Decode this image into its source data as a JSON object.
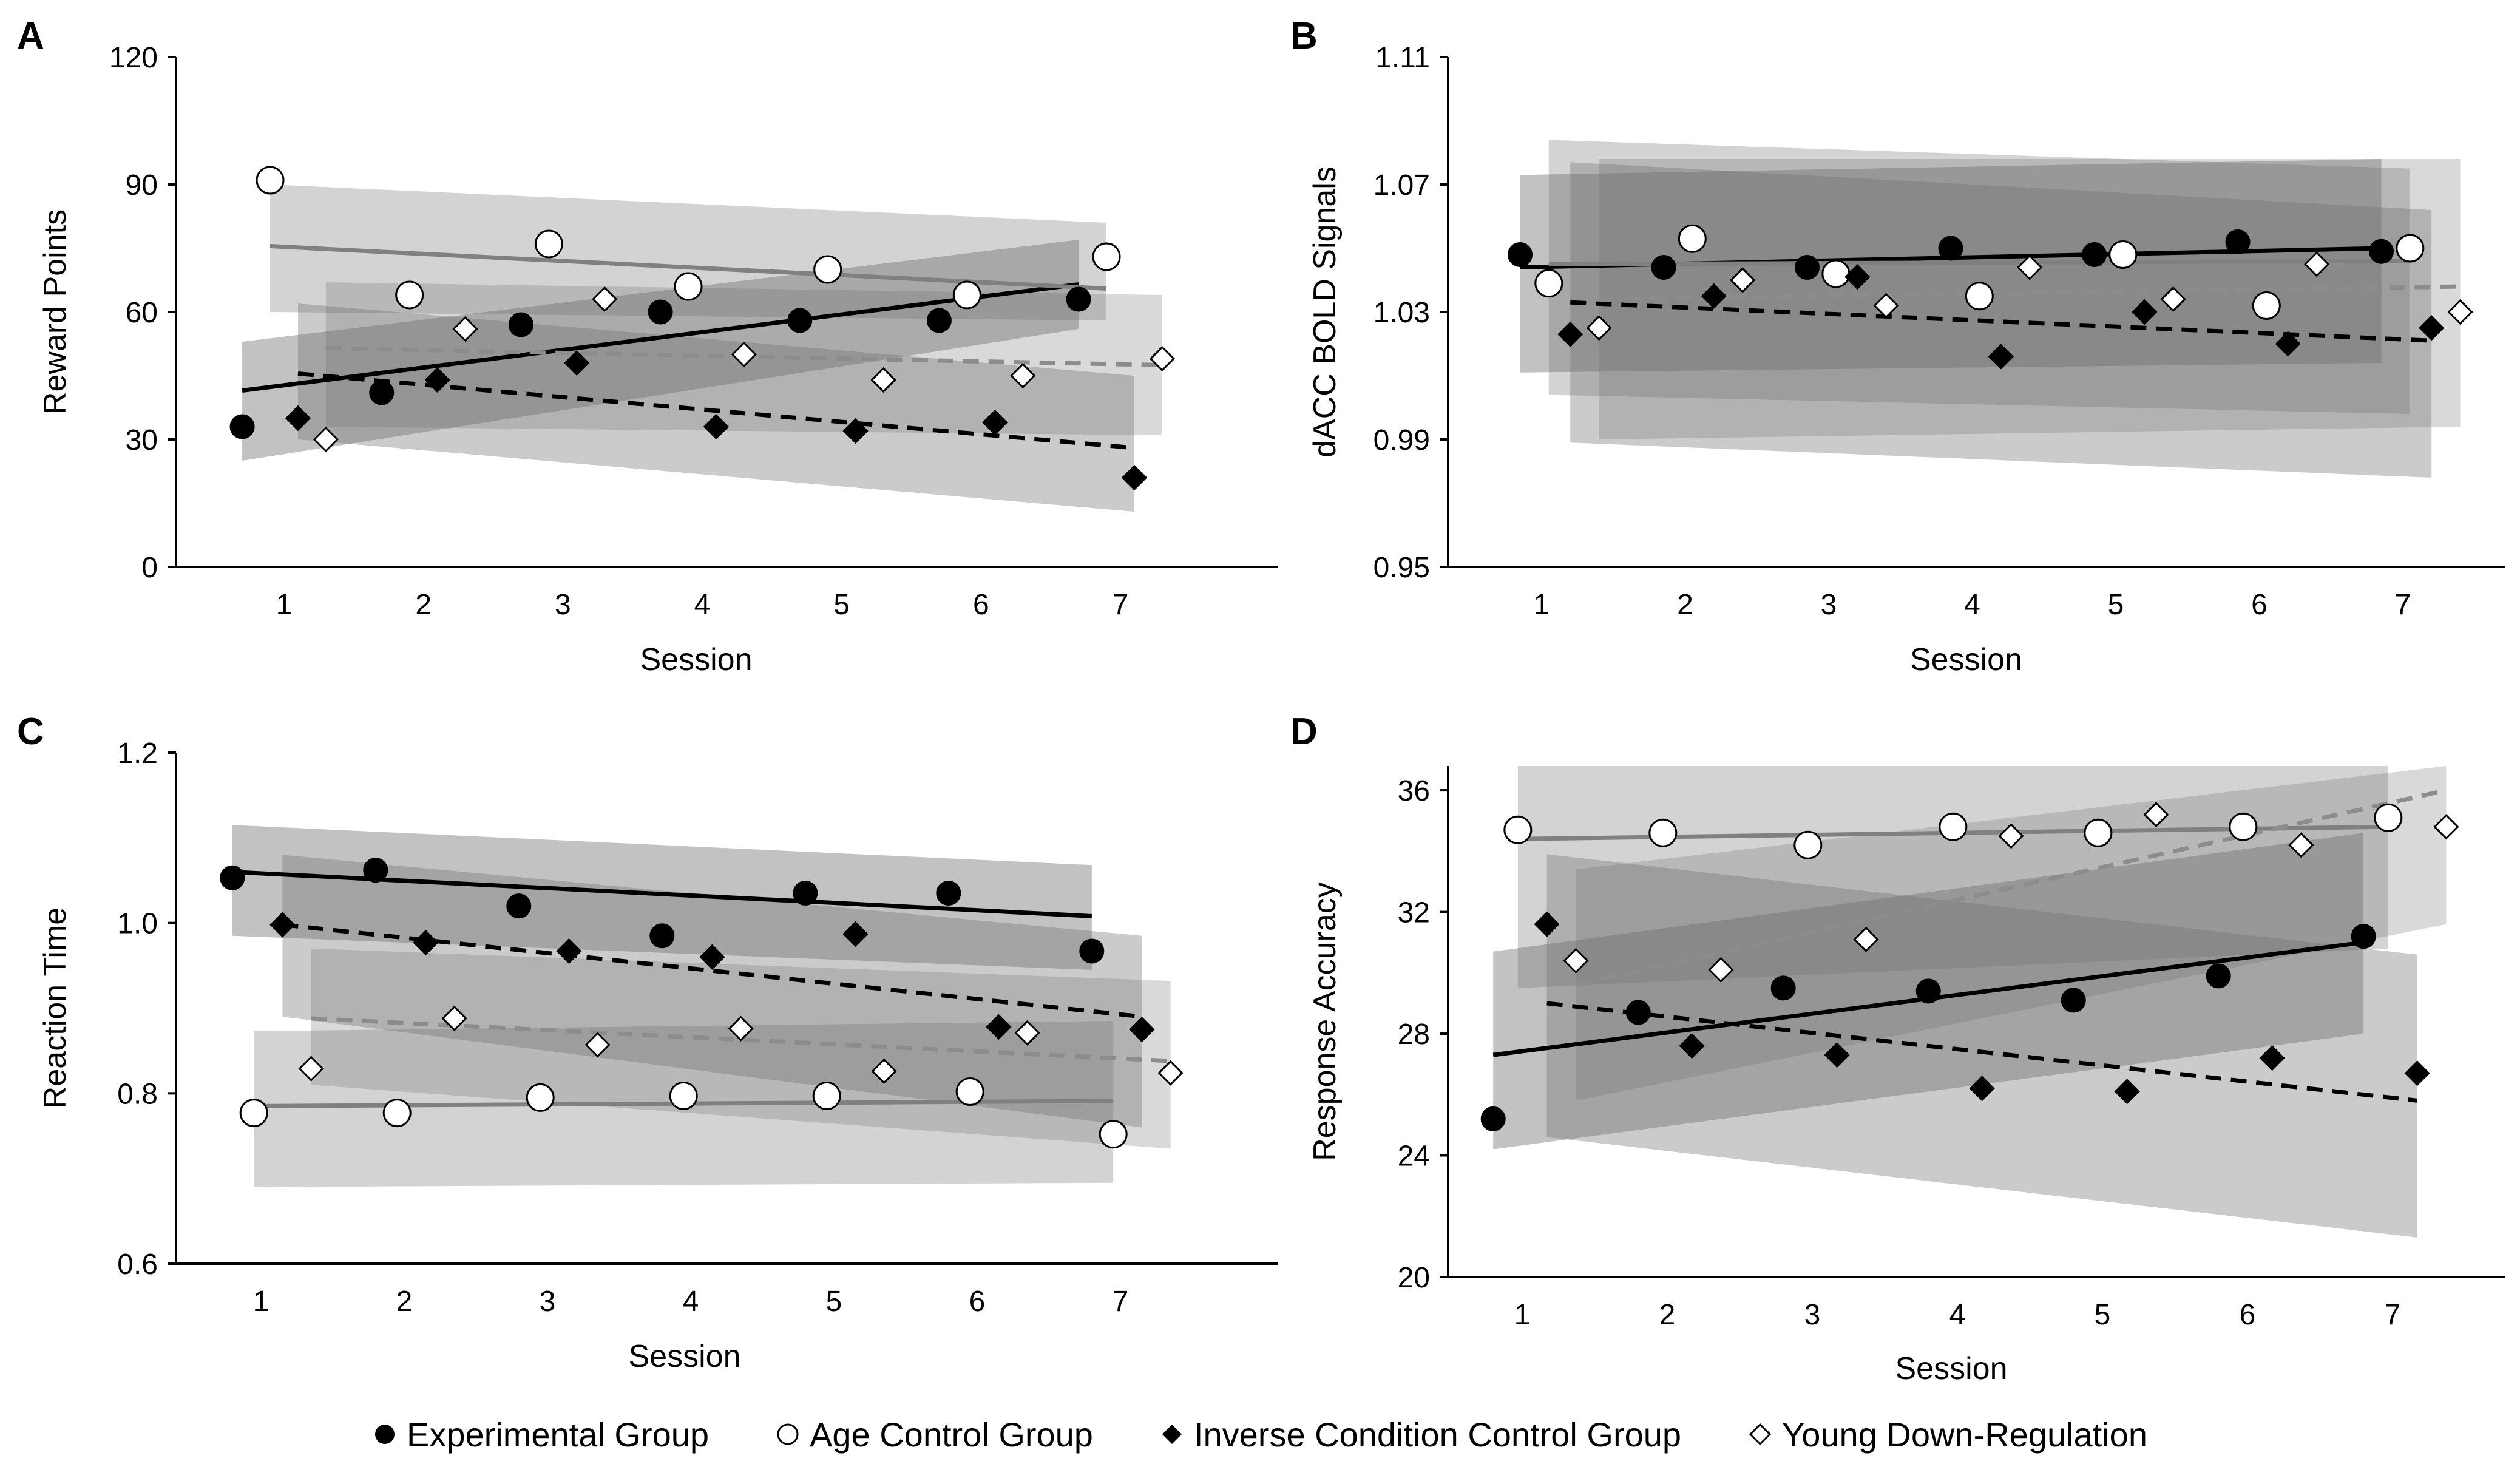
{
  "legend": [
    {
      "key": "exp",
      "label": "Experimental Group"
    },
    {
      "key": "age",
      "label": "Age Control Group"
    },
    {
      "key": "inv",
      "label": "Inverse Condition Control Group"
    },
    {
      "key": "young",
      "label": "Young Down-Regulation"
    }
  ],
  "colors": {
    "axis": "#000000",
    "exp_line": "#000000",
    "age_line": "#808080",
    "inv_line": "#000000",
    "young_line": "#8c8c8c",
    "marker_dark": "#000000",
    "marker_light": "#ffffff",
    "band": "#b4b4b4"
  },
  "chart_data": [
    {
      "panel": "A",
      "type": "scatter",
      "title": "",
      "xlabel": "Session",
      "ylabel": "Reward Points",
      "ylim": [
        0,
        120
      ],
      "yticks": [
        0,
        30,
        60,
        90,
        120
      ],
      "xticks": [
        1,
        2,
        3,
        4,
        5,
        6,
        7
      ],
      "series": [
        {
          "name": "Experimental Group",
          "key": "exp",
          "x": [
            0.7,
            1.7,
            2.7,
            3.7,
            4.7,
            5.7,
            6.7
          ],
          "values": [
            33,
            41,
            57,
            60,
            58,
            58,
            63
          ],
          "trend": [
            [
              0.7,
              41.5
            ],
            [
              6.7,
              66.5
            ]
          ],
          "band": [
            [
              0.7,
              25,
              53
            ],
            [
              6.7,
              56,
              77
            ]
          ]
        },
        {
          "name": "Age Control Group",
          "key": "age",
          "x": [
            0.9,
            1.9,
            2.9,
            3.9,
            4.9,
            5.9,
            6.9
          ],
          "values": [
            91,
            64,
            76,
            66,
            70,
            64,
            73
          ],
          "trend": [
            [
              0.9,
              75.5
            ],
            [
              6.9,
              65.5
            ]
          ],
          "band": [
            [
              0.9,
              60,
              90
            ],
            [
              6.9,
              58,
              81
            ]
          ]
        },
        {
          "name": "Inverse Condition Control Group",
          "key": "inv",
          "x": [
            1.1,
            2.1,
            3.1,
            4.1,
            5.1,
            6.1,
            7.1
          ],
          "values": [
            35,
            44,
            48,
            33,
            32,
            34,
            21
          ],
          "trend": [
            [
              1.1,
              45.5
            ],
            [
              7.1,
              28
            ]
          ],
          "band": [
            [
              1.1,
              30,
              62
            ],
            [
              7.1,
              13,
              45
            ]
          ]
        },
        {
          "name": "Young Down-Regulation",
          "key": "young",
          "x": [
            1.3,
            2.3,
            3.3,
            4.3,
            5.3,
            6.3,
            7.3
          ],
          "values": [
            30,
            56,
            63,
            50,
            44,
            45,
            49
          ],
          "trend": [
            [
              1.3,
              51.5
            ],
            [
              7.3,
              47.5
            ]
          ],
          "band": [
            [
              1.3,
              33,
              67
            ],
            [
              7.3,
              31,
              64
            ]
          ]
        }
      ]
    },
    {
      "panel": "B",
      "type": "scatter",
      "title": "",
      "xlabel": "Session",
      "ylabel": "dACC BOLD Signals",
      "ylim": [
        0.95,
        1.11
      ],
      "yticks": [
        0.95,
        0.99,
        1.03,
        1.07,
        1.11
      ],
      "xticks": [
        1,
        2,
        3,
        4,
        5,
        6,
        7
      ],
      "series": [
        {
          "name": "Experimental Group",
          "key": "exp",
          "x": [
            0.85,
            1.85,
            2.85,
            3.85,
            4.85,
            5.85,
            6.85
          ],
          "values": [
            1.048,
            1.044,
            1.044,
            1.05,
            1.048,
            1.052,
            1.049
          ],
          "trend": [
            [
              0.85,
              1.044
            ],
            [
              6.85,
              1.05
            ]
          ],
          "band": [
            [
              0.85,
              1.011,
              1.073
            ],
            [
              6.85,
              1.014,
              1.078
            ]
          ]
        },
        {
          "name": "Age Control Group",
          "key": "age",
          "x": [
            1.05,
            2.05,
            3.05,
            4.05,
            5.05,
            6.05,
            7.05
          ],
          "values": [
            1.039,
            1.053,
            1.042,
            1.035,
            1.048,
            1.032,
            1.05
          ],
          "trend": [
            [
              1.05,
              1.045
            ],
            [
              7.05,
              1.046
            ]
          ],
          "band": [
            [
              1.05,
              1.004,
              1.084
            ],
            [
              7.05,
              0.998,
              1.075
            ]
          ]
        },
        {
          "name": "Inverse Condition Control Group",
          "key": "inv",
          "x": [
            1.2,
            2.2,
            3.2,
            4.2,
            5.2,
            6.2,
            7.2
          ],
          "values": [
            1.023,
            1.035,
            1.041,
            1.016,
            1.03,
            1.02,
            1.025
          ],
          "trend": [
            [
              1.2,
              1.033
            ],
            [
              7.2,
              1.021
            ]
          ],
          "band": [
            [
              1.2,
              0.989,
              1.077
            ],
            [
              7.2,
              0.978,
              1.062
            ]
          ]
        },
        {
          "name": "Young Down-Regulation",
          "key": "young",
          "x": [
            1.4,
            2.4,
            3.4,
            4.4,
            5.4,
            6.4,
            7.4
          ],
          "values": [
            1.025,
            1.04,
            1.032,
            1.044,
            1.034,
            1.045,
            1.03
          ],
          "trend": [
            [
              1.4,
              1.034
            ],
            [
              7.4,
              1.038
            ]
          ],
          "band": [
            [
              1.4,
              0.99,
              1.078
            ],
            [
              7.4,
              0.994,
              1.078
            ]
          ]
        }
      ]
    },
    {
      "panel": "C",
      "type": "scatter",
      "title": "",
      "xlabel": "Session",
      "ylabel": "Reaction Time",
      "ylim": [
        0.6,
        1.2
      ],
      "yticks": [
        0.6,
        0.8,
        1.0,
        1.2
      ],
      "xticks": [
        1,
        2,
        3,
        4,
        5,
        6,
        7
      ],
      "series": [
        {
          "name": "Experimental Group",
          "key": "exp",
          "x": [
            0.8,
            1.8,
            2.8,
            3.8,
            4.8,
            5.8,
            6.8
          ],
          "values": [
            1.053,
            1.062,
            1.02,
            0.985,
            1.035,
            1.035,
            0.967
          ],
          "trend": [
            [
              0.8,
              1.06
            ],
            [
              6.8,
              1.008
            ]
          ],
          "band": [
            [
              0.8,
              0.985,
              1.115
            ],
            [
              6.8,
              0.945,
              1.068
            ]
          ]
        },
        {
          "name": "Age Control Group",
          "key": "age",
          "x": [
            0.95,
            1.95,
            2.95,
            3.95,
            4.95,
            5.95,
            6.95
          ],
          "values": [
            0.777,
            0.777,
            0.795,
            0.797,
            0.797,
            0.802,
            0.752
          ],
          "trend": [
            [
              0.95,
              0.785
            ],
            [
              6.95,
              0.791
            ]
          ],
          "band": [
            [
              0.95,
              0.69,
              0.873
            ],
            [
              6.95,
              0.695,
              0.885
            ]
          ]
        },
        {
          "name": "Inverse Condition Control Group",
          "key": "inv",
          "x": [
            1.15,
            2.15,
            3.15,
            4.15,
            5.15,
            6.15,
            7.15
          ],
          "values": [
            0.998,
            0.977,
            0.967,
            0.96,
            0.987,
            0.878,
            0.875
          ],
          "trend": [
            [
              1.15,
              0.998
            ],
            [
              7.15,
              0.89
            ]
          ],
          "band": [
            [
              1.15,
              0.89,
              1.08
            ],
            [
              7.15,
              0.76,
              0.985
            ]
          ]
        },
        {
          "name": "Young Down-Regulation",
          "key": "young",
          "x": [
            1.35,
            2.35,
            3.35,
            4.35,
            5.35,
            6.35,
            7.35
          ],
          "values": [
            0.829,
            0.888,
            0.857,
            0.876,
            0.826,
            0.871,
            0.824
          ],
          "trend": [
            [
              1.35,
              0.888
            ],
            [
              7.35,
              0.838
            ]
          ],
          "band": [
            [
              1.35,
              0.81,
              0.97
            ],
            [
              7.35,
              0.735,
              0.932
            ]
          ]
        }
      ]
    },
    {
      "panel": "D",
      "type": "scatter",
      "title": "",
      "xlabel": "Session",
      "ylabel": "Response Accuracy",
      "ylim": [
        20,
        36.8
      ],
      "yticks": [
        20,
        24,
        28,
        32,
        36
      ],
      "xticks": [
        1,
        2,
        3,
        4,
        5,
        6,
        7
      ],
      "series": [
        {
          "name": "Experimental Group",
          "key": "exp",
          "x": [
            0.8,
            1.8,
            2.8,
            3.8,
            4.8,
            5.8,
            6.8
          ],
          "values": [
            25.2,
            28.7,
            29.5,
            29.4,
            29.1,
            29.9,
            31.2
          ],
          "trend": [
            [
              0.8,
              27.3
            ],
            [
              6.8,
              31.0
            ]
          ],
          "band": [
            [
              0.8,
              24.2,
              30.7
            ],
            [
              6.8,
              28.0,
              34.6
            ]
          ]
        },
        {
          "name": "Age Control Group",
          "key": "age",
          "x": [
            0.97,
            1.97,
            2.97,
            3.97,
            4.97,
            5.97,
            6.97
          ],
          "values": [
            34.7,
            34.6,
            34.2,
            34.8,
            34.6,
            34.8,
            35.1
          ],
          "trend": [
            [
              0.97,
              34.4
            ],
            [
              6.97,
              34.8
            ]
          ],
          "band": [
            [
              0.97,
              29.5,
              36.8
            ],
            [
              6.97,
              30.8,
              36.8
            ]
          ]
        },
        {
          "name": "Inverse Condition Control Group",
          "key": "inv",
          "x": [
            1.17,
            2.17,
            3.17,
            4.17,
            5.17,
            6.17,
            7.17
          ],
          "values": [
            31.6,
            27.6,
            27.3,
            26.2,
            26.1,
            27.2,
            26.7
          ],
          "trend": [
            [
              1.17,
              29.0
            ],
            [
              7.17,
              25.8
            ]
          ],
          "band": [
            [
              1.17,
              24.6,
              33.9
            ],
            [
              7.17,
              21.3,
              30.6
            ]
          ]
        },
        {
          "name": "Young Down-Regulation",
          "key": "young",
          "x": [
            1.37,
            2.37,
            3.37,
            4.37,
            5.37,
            6.37,
            7.37
          ],
          "values": [
            30.4,
            30.1,
            31.1,
            34.5,
            35.2,
            34.2,
            34.8
          ],
          "trend": [
            [
              1.37,
              29.6
            ],
            [
              7.37,
              36.0
            ]
          ],
          "band": [
            [
              1.37,
              25.8,
              33.4
            ],
            [
              7.37,
              31.6,
              36.8
            ]
          ]
        }
      ]
    }
  ]
}
